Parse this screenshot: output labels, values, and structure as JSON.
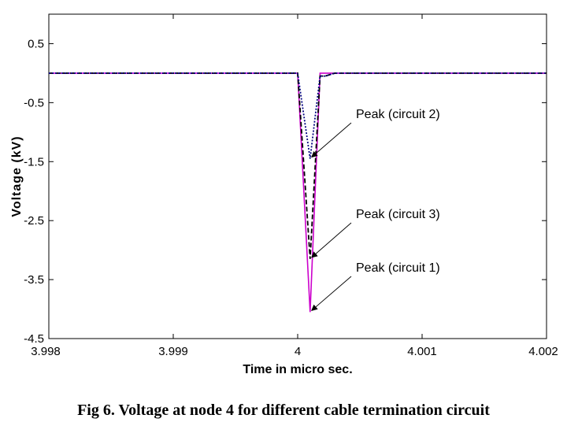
{
  "caption": "Fig 6. Voltage at node 4 for different cable termination circuit",
  "chart_data": {
    "type": "line",
    "xlabel": "Time in micro sec.",
    "ylabel": "Voltage (kV)",
    "xlim": [
      3.998,
      4.002
    ],
    "ylim": [
      -4.5,
      1.0
    ],
    "x_ticks": [
      3.998,
      3.999,
      4,
      4.001,
      4.002
    ],
    "x_tick_labels": [
      "3.998",
      "3.999",
      "4",
      "4.001",
      "4.002"
    ],
    "y_ticks": [
      0.5,
      -0.5,
      -1.5,
      -2.5,
      -3.5,
      -4.5
    ],
    "y_tick_labels": [
      "0.5",
      "-0.5",
      "-1.5",
      "-2.5",
      "-3.5",
      "-4.5"
    ],
    "grid": false,
    "series": [
      {
        "color": "#cc00cc",
        "line_style": "solid",
        "x": [
          3.998,
          4.0,
          4.0001,
          4.00018,
          4.0002,
          4.00025,
          4.002
        ],
        "y": [
          0.0,
          0.0,
          -4.05,
          0.0,
          0.0,
          0.0,
          0.0
        ]
      },
      {
        "color": "#000000",
        "line_style": "dashed",
        "x": [
          3.998,
          4.0,
          4.0001,
          4.00018,
          4.00022,
          4.0003,
          4.002
        ],
        "y": [
          0.0,
          0.0,
          -3.15,
          -0.05,
          -0.05,
          0.0,
          0.0
        ]
      },
      {
        "color": "#000080",
        "line_style": "dotted",
        "x": [
          3.998,
          4.0,
          4.0001,
          4.00018,
          4.00022,
          4.0003,
          4.002
        ],
        "y": [
          0.0,
          0.0,
          -1.45,
          -0.05,
          -0.05,
          0.0,
          0.0
        ]
      }
    ],
    "annotations": [
      {
        "text": "Peak (circuit 2)",
        "point": [
          4.0001,
          -1.45
        ]
      },
      {
        "text": "Peak (circuit 3)",
        "point": [
          4.0001,
          -3.15
        ]
      },
      {
        "text": "Peak (circuit 1)",
        "point": [
          4.0001,
          -4.05
        ]
      }
    ]
  }
}
